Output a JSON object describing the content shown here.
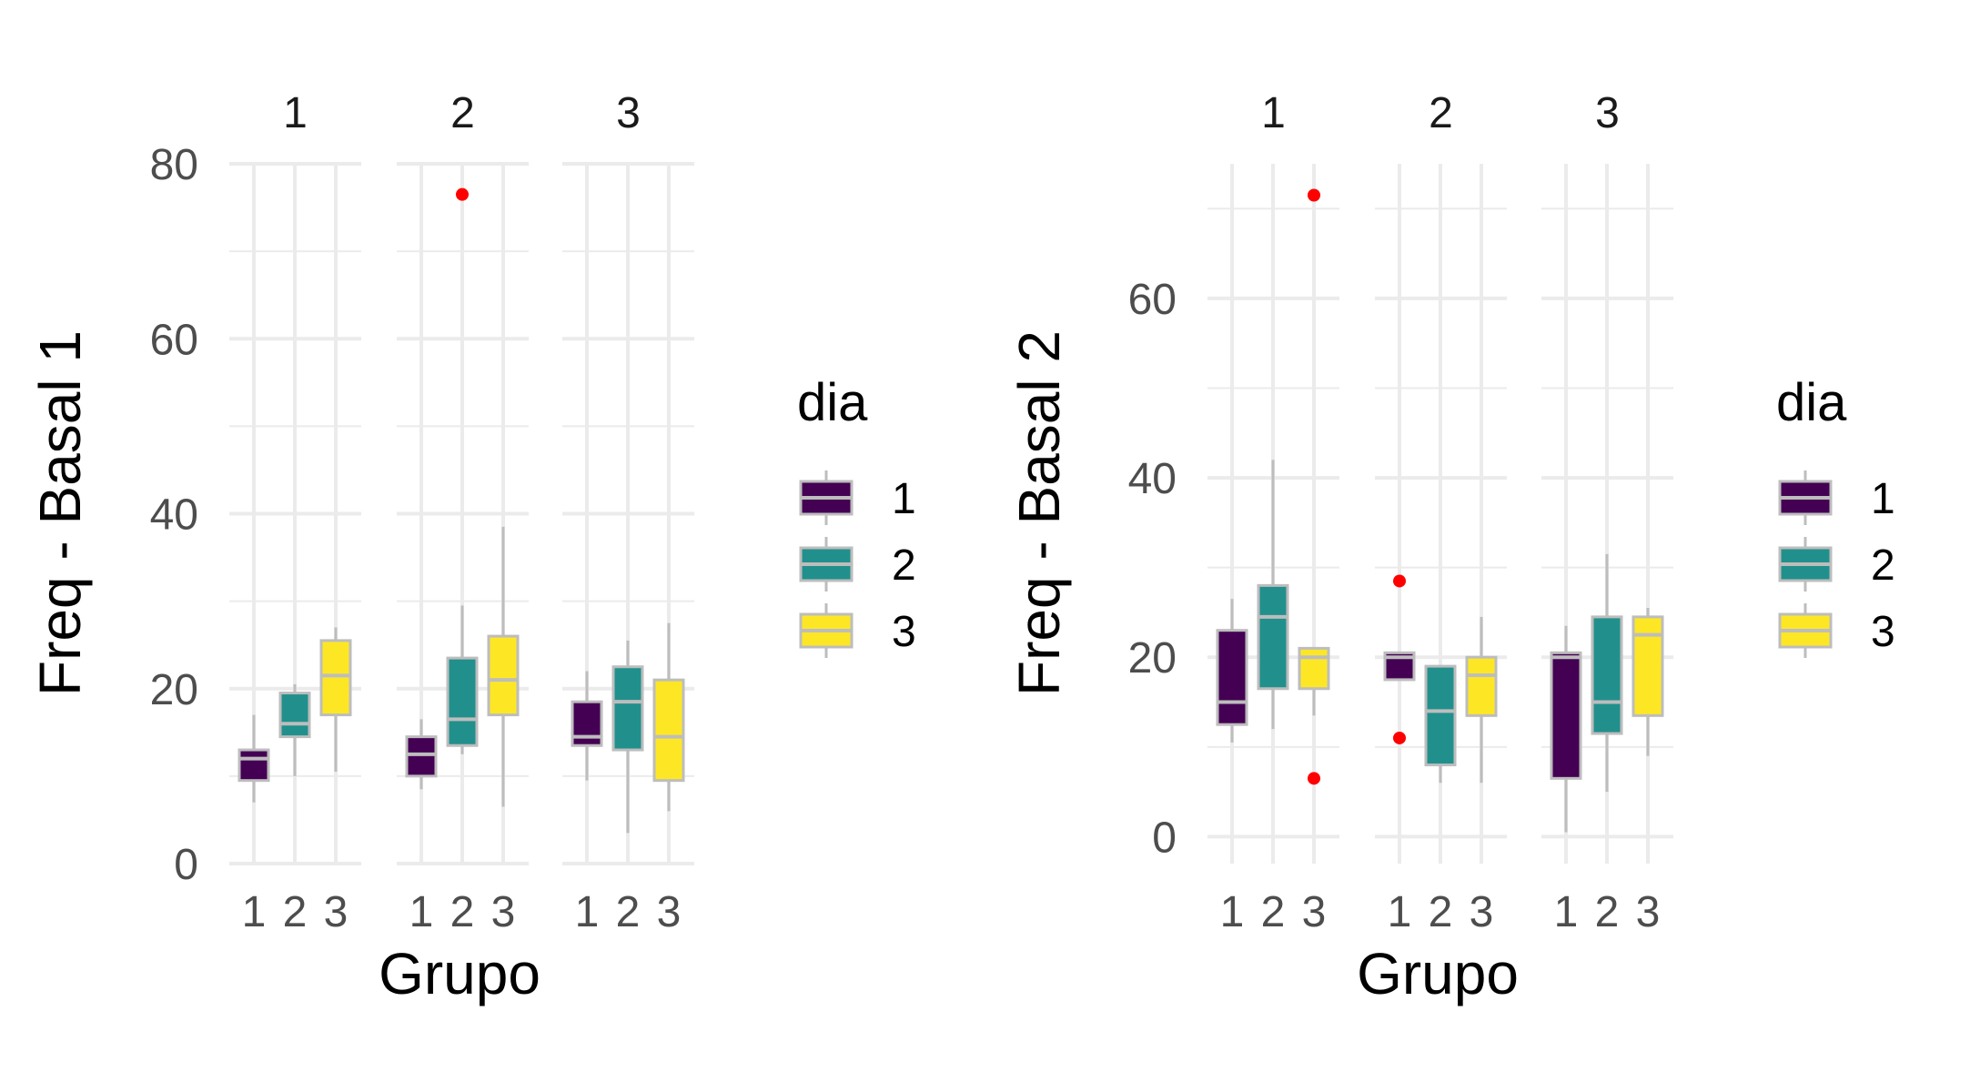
{
  "colors": {
    "dia_fill": [
      "#440154",
      "#21908c",
      "#fde725"
    ],
    "box_outline": "#bdbdbd",
    "median_line": "#bdbdbd",
    "outlier": "#ff0000",
    "grid": "#ebebeb",
    "background": "#ffffff"
  },
  "chart_data": [
    {
      "type": "boxplot",
      "facet_by": "Grupo",
      "facets": [
        "1",
        "2",
        "3"
      ],
      "categories": [
        "1",
        "2",
        "3"
      ],
      "xlabel": "Grupo",
      "ylabel": "Freq - Basal 1",
      "ylim": [
        0,
        80
      ],
      "yticks": [
        0,
        20,
        40,
        60,
        80
      ],
      "grid": true,
      "legend": {
        "title": "dia",
        "entries": [
          "1",
          "2",
          "3"
        ],
        "placement": "right"
      },
      "series": [
        {
          "facet": "1",
          "dia": "1",
          "min": 7,
          "q1": 9.5,
          "median": 12,
          "q3": 13,
          "max": 17,
          "outliers": []
        },
        {
          "facet": "1",
          "dia": "2",
          "min": 10,
          "q1": 14.5,
          "median": 16,
          "q3": 19.5,
          "max": 20.5,
          "outliers": []
        },
        {
          "facet": "1",
          "dia": "3",
          "min": 10.5,
          "q1": 17,
          "median": 21.5,
          "q3": 25.5,
          "max": 27,
          "outliers": []
        },
        {
          "facet": "2",
          "dia": "1",
          "min": 8.5,
          "q1": 10,
          "median": 12.5,
          "q3": 14.5,
          "max": 16.5,
          "outliers": []
        },
        {
          "facet": "2",
          "dia": "2",
          "min": 12.5,
          "q1": 13.5,
          "median": 16.5,
          "q3": 23.5,
          "max": 29.5,
          "outliers": [
            76.5
          ]
        },
        {
          "facet": "2",
          "dia": "3",
          "min": 6.5,
          "q1": 17,
          "median": 21,
          "q3": 26,
          "max": 38.5,
          "outliers": []
        },
        {
          "facet": "3",
          "dia": "1",
          "min": 9.5,
          "q1": 13.5,
          "median": 14.5,
          "q3": 18.5,
          "max": 22,
          "outliers": []
        },
        {
          "facet": "3",
          "dia": "2",
          "min": 3.5,
          "q1": 13,
          "median": 18.5,
          "q3": 22.5,
          "max": 25.5,
          "outliers": []
        },
        {
          "facet": "3",
          "dia": "3",
          "min": 6,
          "q1": 9.5,
          "median": 14.5,
          "q3": 21,
          "max": 27.5,
          "outliers": []
        }
      ]
    },
    {
      "type": "boxplot",
      "facet_by": "Grupo",
      "facets": [
        "1",
        "2",
        "3"
      ],
      "categories": [
        "1",
        "2",
        "3"
      ],
      "xlabel": "Grupo",
      "ylabel": "Freq - Basal 2",
      "ylim": [
        -3,
        75
      ],
      "yticks": [
        0,
        20,
        40,
        60
      ],
      "grid": true,
      "legend": {
        "title": "dia",
        "entries": [
          "1",
          "2",
          "3"
        ],
        "placement": "right"
      },
      "series": [
        {
          "facet": "1",
          "dia": "1",
          "min": 10.5,
          "q1": 12.5,
          "median": 15,
          "q3": 23,
          "max": 26.5,
          "outliers": []
        },
        {
          "facet": "1",
          "dia": "2",
          "min": 12,
          "q1": 16.5,
          "median": 24.5,
          "q3": 28,
          "max": 42,
          "outliers": []
        },
        {
          "facet": "1",
          "dia": "3",
          "min": 13.5,
          "q1": 16.5,
          "median": 20,
          "q3": 21,
          "max": 21,
          "outliers": [
            71.5,
            6.5
          ]
        },
        {
          "facet": "2",
          "dia": "1",
          "min": 17.5,
          "q1": 17.5,
          "median": 20,
          "q3": 20.5,
          "max": 20.5,
          "outliers": [
            28.5,
            11
          ]
        },
        {
          "facet": "2",
          "dia": "2",
          "min": 6,
          "q1": 8,
          "median": 14,
          "q3": 19,
          "max": 19,
          "outliers": []
        },
        {
          "facet": "2",
          "dia": "3",
          "min": 6,
          "q1": 13.5,
          "median": 18,
          "q3": 20,
          "max": 24.5,
          "outliers": []
        },
        {
          "facet": "3",
          "dia": "1",
          "min": 0.5,
          "q1": 6.5,
          "median": 20,
          "q3": 20.5,
          "max": 23.5,
          "outliers": []
        },
        {
          "facet": "3",
          "dia": "2",
          "min": 5,
          "q1": 11.5,
          "median": 15,
          "q3": 24.5,
          "max": 31.5,
          "outliers": []
        },
        {
          "facet": "3",
          "dia": "3",
          "min": 9,
          "q1": 13.5,
          "median": 22.5,
          "q3": 24.5,
          "max": 25.5,
          "outliers": []
        }
      ]
    }
  ]
}
